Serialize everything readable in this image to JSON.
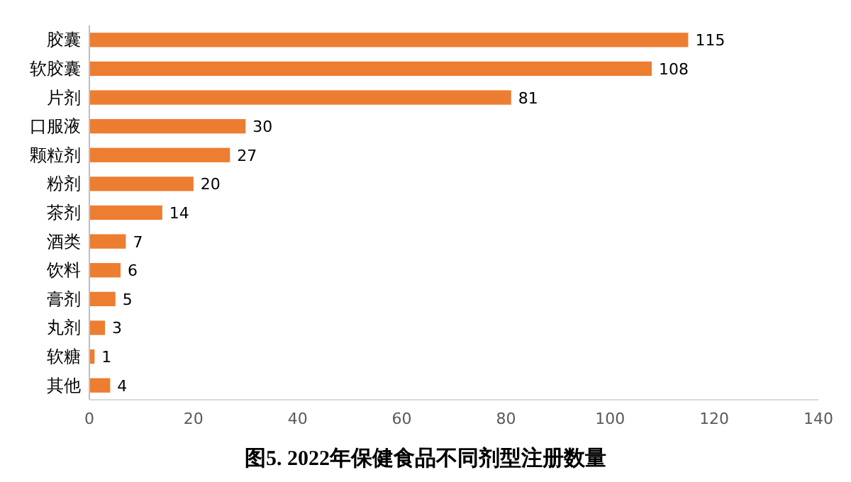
{
  "chart_data": {
    "type": "bar",
    "orientation": "horizontal",
    "title": "图5. 2022年保健食品不同剂型注册数量",
    "categories": [
      "胶囊",
      "软胶囊",
      "片剂",
      "口服液",
      "颗粒剂",
      "粉剂",
      "茶剂",
      "酒类",
      "饮料",
      "膏剂",
      "丸剂",
      "软糖",
      "其他"
    ],
    "values": [
      115,
      108,
      81,
      30,
      27,
      20,
      14,
      7,
      6,
      5,
      3,
      1,
      4
    ],
    "color": "#ed7d31",
    "xlim": [
      0,
      140
    ],
    "xticks": [
      0,
      20,
      40,
      60,
      80,
      100,
      120,
      140
    ],
    "data_labels": true,
    "grid": false
  }
}
